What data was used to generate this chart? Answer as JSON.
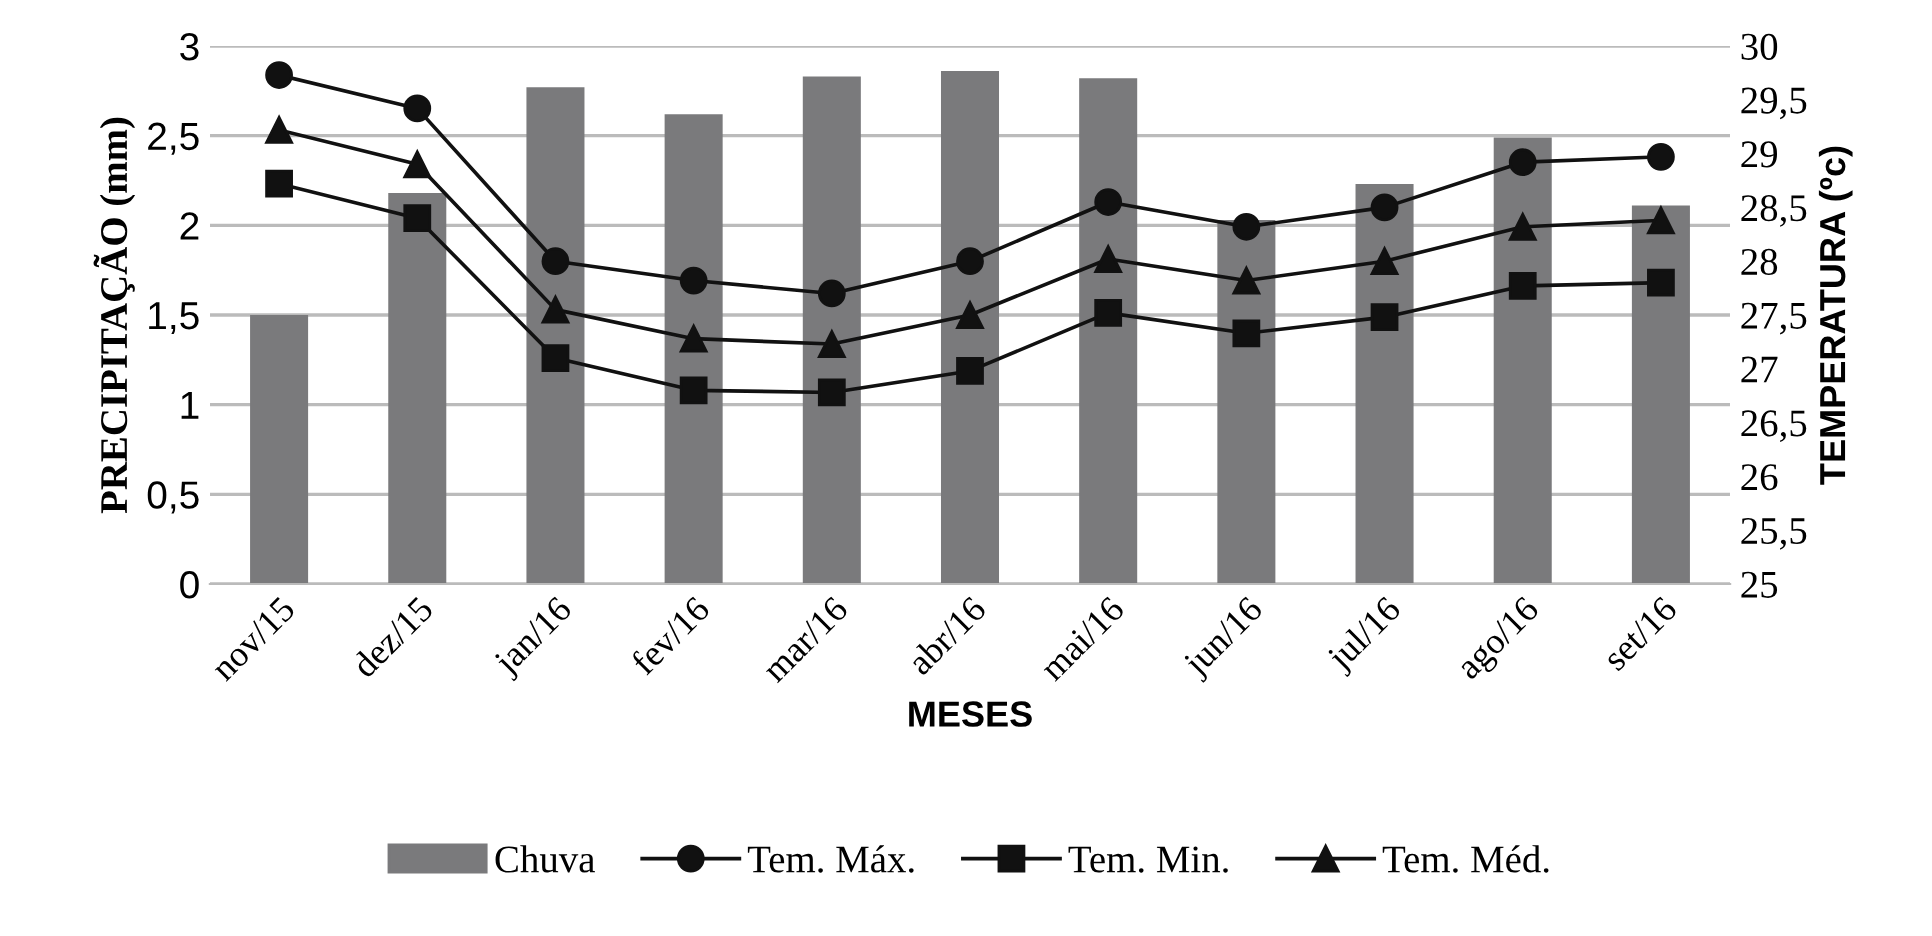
{
  "chart_data": {
    "type": "bar",
    "xlabel": "MESES",
    "ylabel": "PRECIPITAÇÃO (mm)",
    "y2label": "TEMPERATURA (ºc)",
    "categories": [
      "nov/15",
      "dez/15",
      "jan/16",
      "fev/16",
      "mar/16",
      "abr/16",
      "mai/16",
      "jun/16",
      "jul/16",
      "ago/16",
      "set/16"
    ],
    "series": [
      {
        "name": "Chuva",
        "color": "#7a7a7c",
        "values": [
          1.5,
          2.18,
          2.77,
          2.62,
          2.83,
          2.86,
          2.82,
          2.03,
          2.23,
          2.49,
          2.11
        ]
      },
      {
        "name": "Tem. Máx.",
        "type": "line",
        "axis": "y2",
        "marker": "circle",
        "color": "#111111",
        "values": [
          29.73,
          29.42,
          28.0,
          27.82,
          27.7,
          28.0,
          28.55,
          28.32,
          28.5,
          28.92,
          28.97
        ]
      },
      {
        "name": "Tem. Min.",
        "type": "line",
        "axis": "y2",
        "marker": "square",
        "color": "#111111",
        "values": [
          28.72,
          28.4,
          27.1,
          26.8,
          26.78,
          26.98,
          27.52,
          27.33,
          27.48,
          27.77,
          27.8
        ]
      },
      {
        "name": "Tem. Méd.",
        "type": "line",
        "axis": "y2",
        "marker": "triangle",
        "color": "#111111",
        "values": [
          29.22,
          28.9,
          27.55,
          27.28,
          27.23,
          27.5,
          28.02,
          27.82,
          28.0,
          28.32,
          28.38
        ]
      }
    ],
    "ylim": [
      0,
      3
    ],
    "yticks": [
      0,
      {
        "value": 0.5,
        "label": "0,5"
      },
      1,
      {
        "value": 1.5,
        "label": "1,5"
      },
      2,
      {
        "value": 2.5,
        "label": "2,5"
      },
      3
    ],
    "y2lim": [
      25,
      30
    ],
    "y2ticks": [
      25,
      {
        "value": 25.5,
        "label": "25,5"
      },
      26,
      {
        "value": 26.5,
        "label": "26,5"
      },
      27,
      {
        "value": 27.5,
        "label": "27,5"
      },
      28,
      {
        "value": 28.5,
        "label": "28,5"
      },
      29,
      {
        "value": 29.5,
        "label": "29,5"
      },
      30
    ],
    "grid": "y",
    "legend": "bottom"
  }
}
